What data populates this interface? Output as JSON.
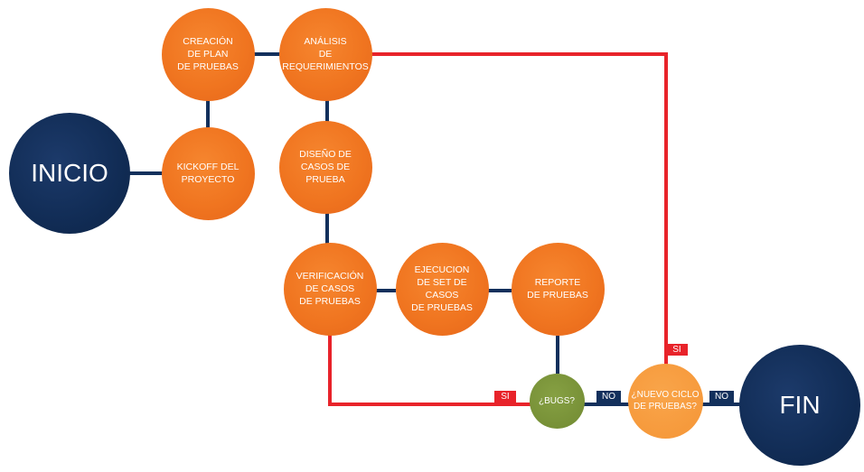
{
  "nodes": {
    "inicio": "INICIO",
    "kickoff": "KICKOFF DEL\nPROYECTO",
    "creacion": "CREACIÓN\nDE PLAN\nDE PRUEBAS",
    "analisis": "ANÁLISIS\nDE\nREQUERIMIENTOS",
    "diseno": "DISEÑO DE\nCASOS DE\nPRUEBA",
    "verificacion": "VERIFICACIÓN\nDE CASOS\nDE PRUEBAS",
    "ejecucion": "EJECUCION\nDE SET DE CASOS\nDE PRUEBAS",
    "reporte": "REPORTE\nDE PRUEBAS",
    "bugs": "¿BUGS?",
    "nuevo_ciclo": "¿NUEVO CICLO\nDE PRUEBAS?",
    "fin": "FIN"
  },
  "labels": {
    "si_bugs": "SI",
    "no_bugs": "NO",
    "si_ciclo": "SI",
    "no_ciclo": "NO"
  },
  "colors": {
    "orange": "#f07520",
    "navy": "#112c55",
    "green": "#718a32",
    "light_orange": "#f59536",
    "red_line": "#e8232a",
    "blue_line": "#13305c"
  }
}
